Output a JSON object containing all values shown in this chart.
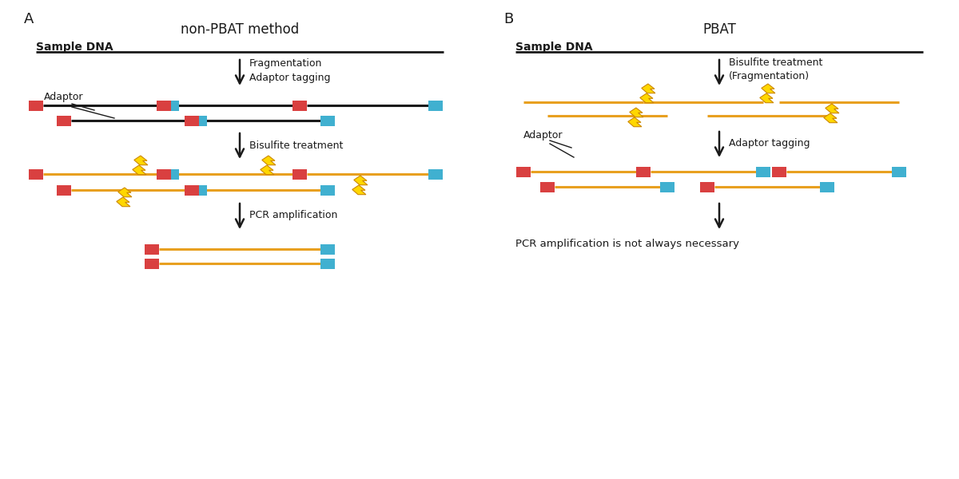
{
  "panel_A_label": "A",
  "panel_B_label": "B",
  "panel_A_title": "non-PBAT method",
  "panel_B_title": "PBAT",
  "sample_dna": "Sample DNA",
  "adaptor_label": "Adaptor",
  "frag_tag": "Fragmentation\nAdaptor tagging",
  "bisulfite_A": "Bisulfite treatment",
  "pcr_A": "PCR amplification",
  "bisulfite_B": "Bisulfite treatment\n(Fragmentation)",
  "adaptor_tag_B": "Adaptor tagging",
  "pcr_B": "PCR amplification is not always necessary",
  "red_color": "#D94040",
  "blue_color": "#40B0D0",
  "orange_color": "#E8A020",
  "black_color": "#1a1a1a",
  "yellow_color": "#FFD700",
  "dark_yellow": "#CC8800",
  "bg_color": "#FFFFFF"
}
